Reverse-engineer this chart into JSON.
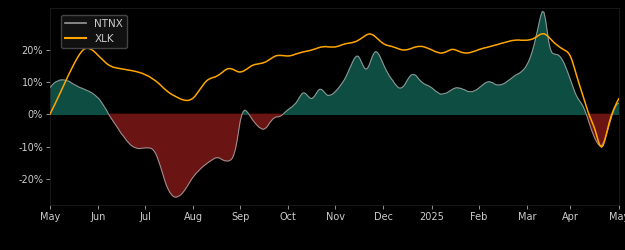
{
  "background_color": "#000000",
  "plot_bg_color": "#000000",
  "fig_width": 6.25,
  "fig_height": 2.5,
  "dpi": 100,
  "ntnx_color": "#999999",
  "xlk_color": "#FFA500",
  "fill_positive_color": "#0d4d42",
  "fill_negative_color": "#6b1414",
  "fill_positive_alpha": 1.0,
  "fill_negative_alpha": 1.0,
  "legend_bg": "#111111",
  "legend_edge": "#444444",
  "text_color": "#cccccc",
  "tick_color": "#555555",
  "spine_color": "#222222",
  "yticks": [
    -0.2,
    -0.1,
    0.0,
    0.1,
    0.2
  ],
  "ytick_labels": [
    "-20%",
    "-10%",
    "0%",
    "10%",
    "20%"
  ],
  "ylim": [
    -0.28,
    0.33
  ],
  "xlim_start": 0,
  "xlim_end": 365,
  "xtick_positions": [
    0,
    31,
    61,
    92,
    122,
    153,
    183,
    214,
    245,
    275,
    306,
    334,
    365
  ],
  "xtick_labels": [
    "May",
    "Jun",
    "Jul",
    "Aug",
    "Sep",
    "Oct",
    "Nov",
    "Dec",
    "2025",
    "Feb",
    "Mar",
    "Apr",
    "May"
  ]
}
